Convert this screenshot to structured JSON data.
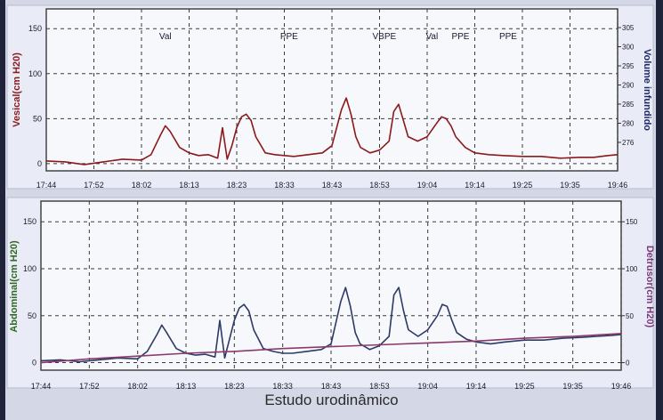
{
  "caption": "Estudo urodinâmico",
  "colors": {
    "vesical": "#8b1a1a",
    "abdominal": "#2d3a66",
    "detrusor": "#8a3a6a",
    "y_left_top": "#8b1a1a",
    "y_left_bottom": "#2e6b22",
    "y_right_top": "#1f2a66",
    "y_right_bottom": "#7a3a7a"
  },
  "chart_data": [
    {
      "type": "line",
      "panel": "top",
      "ylabel_left": "Vesical(cm H20)",
      "ylabel_right": "Volume infundido",
      "xlabels": [
        "17:44",
        "17:52",
        "18:02",
        "18:13",
        "18:23",
        "18:33",
        "18:43",
        "18:53",
        "19:04",
        "19:14",
        "19:25",
        "19:35",
        "19:46"
      ],
      "yticks_left": [
        0,
        50,
        100,
        150
      ],
      "yticks_right": [
        276,
        280,
        285,
        290,
        295,
        300,
        305
      ],
      "ylim_left": [
        -8,
        172
      ],
      "grid": true,
      "annotations": [
        {
          "text": "Val",
          "t": "18:09"
        },
        {
          "text": "PPE",
          "t": "18:35"
        },
        {
          "text": "VBPE",
          "t": "18:55"
        },
        {
          "text": "Val",
          "t": "19:05"
        },
        {
          "text": "PPE",
          "t": "19:11"
        },
        {
          "text": "PPE",
          "t": "19:21"
        }
      ],
      "series": [
        {
          "name": "Vesical",
          "points": [
            [
              0,
              3
            ],
            [
              4,
              2
            ],
            [
              8,
              -1
            ],
            [
              12,
              2
            ],
            [
              16,
              5
            ],
            [
              20,
              4
            ],
            [
              22,
              10
            ],
            [
              24,
              32
            ],
            [
              25,
              42
            ],
            [
              26,
              36
            ],
            [
              28,
              18
            ],
            [
              30,
              12
            ],
            [
              32,
              9
            ],
            [
              34,
              10
            ],
            [
              36,
              6
            ],
            [
              37,
              40
            ],
            [
              38,
              5
            ],
            [
              39,
              20
            ],
            [
              40,
              40
            ],
            [
              41,
              52
            ],
            [
              42,
              55
            ],
            [
              43,
              48
            ],
            [
              44,
              30
            ],
            [
              46,
              12
            ],
            [
              48,
              10
            ],
            [
              50,
              9
            ],
            [
              52,
              8
            ],
            [
              55,
              10
            ],
            [
              58,
              12
            ],
            [
              60,
              20
            ],
            [
              62,
              60
            ],
            [
              63,
              73
            ],
            [
              64,
              55
            ],
            [
              65,
              30
            ],
            [
              66,
              18
            ],
            [
              68,
              12
            ],
            [
              70,
              15
            ],
            [
              72,
              25
            ],
            [
              73,
              58
            ],
            [
              74,
              66
            ],
            [
              75,
              48
            ],
            [
              76,
              30
            ],
            [
              78,
              25
            ],
            [
              80,
              30
            ],
            [
              82,
              45
            ],
            [
              83,
              52
            ],
            [
              84,
              50
            ],
            [
              85,
              42
            ],
            [
              86,
              30
            ],
            [
              88,
              18
            ],
            [
              90,
              12
            ],
            [
              93,
              10
            ],
            [
              96,
              9
            ],
            [
              100,
              8
            ],
            [
              104,
              8
            ],
            [
              108,
              6
            ],
            [
              112,
              7
            ],
            [
              115,
              7
            ],
            [
              118,
              9
            ],
            [
              120,
              10
            ]
          ]
        }
      ]
    },
    {
      "type": "line",
      "panel": "bottom",
      "ylabel_left": "Abdominal(cm H20)",
      "ylabel_right": "Detrusor(cm H20)",
      "xlabels": [
        "17:44",
        "17:52",
        "18:02",
        "18:13",
        "18:23",
        "18:33",
        "18:43",
        "18:53",
        "19:04",
        "19:14",
        "19:25",
        "19:35",
        "19:46"
      ],
      "yticks_left": [
        0,
        50,
        100,
        150
      ],
      "yticks_right": [
        0,
        50,
        100,
        150
      ],
      "ylim_left": [
        -8,
        172
      ],
      "grid": true,
      "series": [
        {
          "name": "Abdominal",
          "points": [
            [
              0,
              2
            ],
            [
              4,
              3
            ],
            [
              8,
              1
            ],
            [
              12,
              3
            ],
            [
              16,
              5
            ],
            [
              20,
              4
            ],
            [
              22,
              12
            ],
            [
              24,
              30
            ],
            [
              25,
              40
            ],
            [
              26,
              32
            ],
            [
              28,
              15
            ],
            [
              30,
              10
            ],
            [
              32,
              8
            ],
            [
              34,
              9
            ],
            [
              36,
              6
            ],
            [
              37,
              45
            ],
            [
              38,
              5
            ],
            [
              39,
              25
            ],
            [
              40,
              45
            ],
            [
              41,
              58
            ],
            [
              42,
              62
            ],
            [
              43,
              55
            ],
            [
              44,
              35
            ],
            [
              46,
              15
            ],
            [
              48,
              12
            ],
            [
              50,
              10
            ],
            [
              52,
              10
            ],
            [
              55,
              12
            ],
            [
              58,
              14
            ],
            [
              60,
              20
            ],
            [
              62,
              65
            ],
            [
              63,
              80
            ],
            [
              64,
              60
            ],
            [
              65,
              32
            ],
            [
              66,
              20
            ],
            [
              68,
              14
            ],
            [
              70,
              18
            ],
            [
              72,
              28
            ],
            [
              73,
              72
            ],
            [
              74,
              80
            ],
            [
              75,
              55
            ],
            [
              76,
              35
            ],
            [
              78,
              28
            ],
            [
              80,
              35
            ],
            [
              82,
              50
            ],
            [
              83,
              62
            ],
            [
              84,
              60
            ],
            [
              85,
              45
            ],
            [
              86,
              32
            ],
            [
              88,
              25
            ],
            [
              90,
              22
            ],
            [
              93,
              20
            ],
            [
              96,
              22
            ],
            [
              100,
              24
            ],
            [
              104,
              24
            ],
            [
              108,
              26
            ],
            [
              112,
              27
            ],
            [
              115,
              28
            ],
            [
              118,
              29
            ],
            [
              120,
              30
            ]
          ]
        },
        {
          "name": "Detrusor",
          "points": [
            [
              0,
              0
            ],
            [
              10,
              4
            ],
            [
              20,
              7
            ],
            [
              30,
              10
            ],
            [
              40,
              12
            ],
            [
              50,
              15
            ],
            [
              60,
              17
            ],
            [
              70,
              19
            ],
            [
              80,
              21
            ],
            [
              90,
              23
            ],
            [
              100,
              26
            ],
            [
              110,
              28
            ],
            [
              120,
              31
            ]
          ]
        }
      ]
    }
  ]
}
